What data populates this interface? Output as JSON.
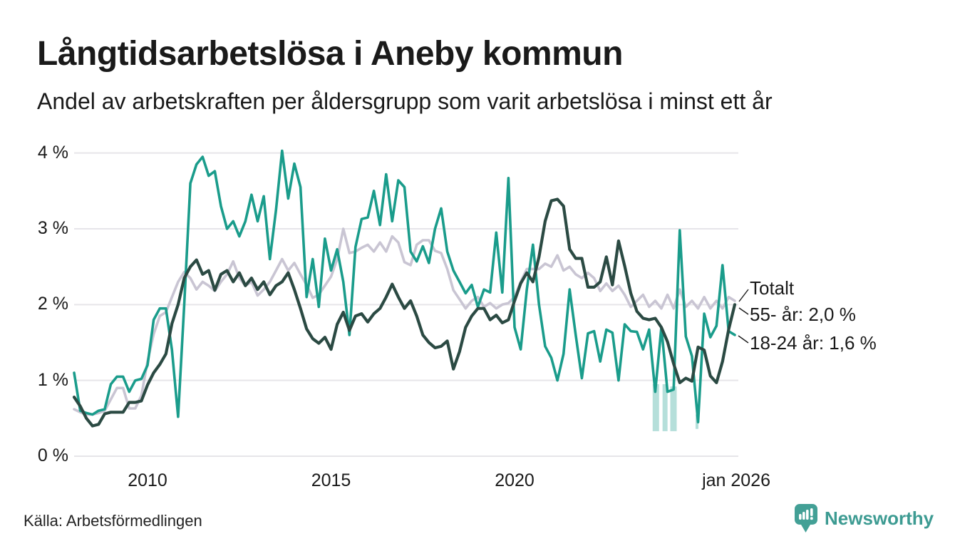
{
  "header": {
    "title": "Långtidsarbetslösa i Aneby kommun",
    "subtitle": "Andel av arbetskraften per åldersgrupp som varit arbetslösa i minst ett år"
  },
  "source_note": "Källa: Arbetsförmedlingen",
  "branding": {
    "name": "Newsworthy",
    "color": "#3d9b92"
  },
  "annotations": {
    "totalt": "Totalt",
    "age_55": "55- år: 2,0 %",
    "age_18_24": "18-24 år: 1,6 %"
  },
  "chart_data": {
    "type": "line",
    "title": "Långtidsarbetslösa i Aneby kommun",
    "subtitle": "Andel av arbetskraften per åldersgrupp som varit arbetslösa i minst ett år",
    "unit": "% av arbetskraften",
    "x_start": 2008.0,
    "x_step_years": 0.16667,
    "xlim": [
      2008.0,
      2026.05
    ],
    "ylim": [
      0,
      4.2
    ],
    "grid": "horizontal",
    "y_ticks": [
      {
        "label": "0 %",
        "v": 0
      },
      {
        "label": "1 %",
        "v": 1
      },
      {
        "label": "2 %",
        "v": 2
      },
      {
        "label": "3 %",
        "v": 3
      },
      {
        "label": "4 %",
        "v": 4
      }
    ],
    "x_ticks": [
      {
        "label": "2010",
        "t": 2010.0
      },
      {
        "label": "2015",
        "t": 2015.0
      },
      {
        "label": "2020",
        "t": 2020.0
      },
      {
        "label": "jan 2026",
        "t": 2026.04
      }
    ],
    "series": [
      {
        "name": "Totalt",
        "color": "#c9c5d3",
        "stroke_width": 3.6,
        "end_value_label": null,
        "values": [
          0.62,
          0.58,
          0.55,
          0.55,
          0.57,
          0.6,
          0.75,
          0.9,
          0.9,
          0.63,
          0.63,
          0.8,
          1.25,
          1.61,
          1.85,
          1.9,
          2.1,
          2.3,
          2.43,
          2.35,
          2.2,
          2.3,
          2.25,
          2.18,
          2.3,
          2.4,
          2.57,
          2.35,
          2.25,
          2.3,
          2.12,
          2.2,
          2.3,
          2.45,
          2.6,
          2.45,
          2.55,
          2.4,
          2.26,
          2.09,
          2.13,
          2.25,
          2.37,
          2.6,
          3.0,
          2.68,
          2.7,
          2.75,
          2.79,
          2.7,
          2.82,
          2.7,
          2.9,
          2.82,
          2.56,
          2.52,
          2.79,
          2.85,
          2.85,
          2.71,
          2.68,
          2.47,
          2.19,
          2.07,
          1.95,
          2.05,
          2.1,
          1.97,
          2.02,
          1.95,
          2.0,
          2.02,
          2.1,
          2.3,
          2.47,
          2.47,
          2.47,
          2.54,
          2.5,
          2.65,
          2.45,
          2.5,
          2.4,
          2.35,
          2.42,
          2.35,
          2.18,
          2.28,
          2.18,
          2.25,
          2.13,
          1.97,
          2.05,
          2.13,
          1.97,
          2.05,
          1.95,
          2.13,
          1.95,
          2.2,
          1.97,
          2.05,
          1.95,
          2.1,
          1.95,
          2.05,
          1.95,
          2.1,
          2.05
        ]
      },
      {
        "name": "18-24 år",
        "color": "#1a9c8b",
        "stroke_width": 3.6,
        "end_value_label": "18-24 år: 1,6 %",
        "values": [
          1.1,
          0.6,
          0.57,
          0.55,
          0.6,
          0.62,
          0.95,
          1.05,
          1.05,
          0.85,
          1.0,
          1.02,
          1.2,
          1.8,
          1.95,
          1.95,
          1.4,
          0.52,
          2.0,
          3.6,
          3.85,
          3.95,
          3.7,
          3.76,
          3.3,
          3.0,
          3.1,
          2.9,
          3.1,
          3.45,
          3.1,
          3.43,
          2.6,
          3.25,
          4.03,
          3.4,
          3.86,
          3.55,
          2.1,
          2.6,
          1.97,
          2.87,
          2.45,
          2.73,
          2.3,
          1.6,
          2.76,
          3.13,
          3.15,
          3.5,
          3.05,
          3.72,
          3.1,
          3.64,
          3.55,
          2.7,
          2.57,
          2.77,
          2.55,
          3.0,
          3.27,
          2.7,
          2.45,
          2.3,
          2.15,
          2.26,
          1.97,
          2.2,
          2.16,
          2.95,
          2.16,
          3.67,
          1.7,
          1.41,
          2.2,
          2.79,
          2.0,
          1.45,
          1.3,
          1.0,
          1.35,
          2.2,
          1.6,
          1.03,
          1.62,
          1.65,
          1.25,
          1.67,
          1.63,
          1.0,
          1.74,
          1.65,
          1.64,
          1.41,
          1.67,
          0.85,
          1.7,
          0.85,
          0.88,
          2.98,
          1.58,
          1.32,
          0.45,
          1.88,
          1.57,
          1.72,
          2.52,
          1.65,
          1.6
        ]
      },
      {
        "name": "55- år",
        "color": "#2b4a43",
        "stroke_width": 4.2,
        "end_value_label": "55- år: 2,0 %",
        "values": [
          0.78,
          0.66,
          0.5,
          0.4,
          0.42,
          0.56,
          0.58,
          0.58,
          0.58,
          0.71,
          0.71,
          0.73,
          0.94,
          1.1,
          1.21,
          1.35,
          1.75,
          2.0,
          2.35,
          2.5,
          2.59,
          2.4,
          2.45,
          2.19,
          2.4,
          2.45,
          2.3,
          2.42,
          2.25,
          2.35,
          2.2,
          2.3,
          2.13,
          2.25,
          2.3,
          2.42,
          2.2,
          1.95,
          1.68,
          1.55,
          1.49,
          1.57,
          1.41,
          1.74,
          1.9,
          1.66,
          1.85,
          1.88,
          1.77,
          1.88,
          1.95,
          2.1,
          2.27,
          2.1,
          1.95,
          2.05,
          1.85,
          1.6,
          1.5,
          1.43,
          1.45,
          1.52,
          1.15,
          1.38,
          1.7,
          1.85,
          1.95,
          1.95,
          1.8,
          1.86,
          1.76,
          1.8,
          2.05,
          2.28,
          2.42,
          2.3,
          2.63,
          3.1,
          3.37,
          3.39,
          3.3,
          2.73,
          2.61,
          2.61,
          2.23,
          2.23,
          2.3,
          2.63,
          2.26,
          2.84,
          2.51,
          2.15,
          1.91,
          1.82,
          1.8,
          1.82,
          1.7,
          1.51,
          1.22,
          0.97,
          1.03,
          0.99,
          1.44,
          1.4,
          1.06,
          0.97,
          1.25,
          1.67,
          2.0
        ]
      }
    ],
    "uncertain_bars": [
      {
        "t": 2023.85,
        "v_top": 0.95,
        "v_bottom": 0.33,
        "width": 9
      },
      {
        "t": 2024.1,
        "v_top": 0.95,
        "v_bottom": 0.33,
        "width": 7
      },
      {
        "t": 2024.33,
        "v_top": 0.92,
        "v_bottom": 0.33,
        "width": 9
      },
      {
        "t": 2024.97,
        "v_top": 0.55,
        "v_bottom": 0.36,
        "width": 4
      }
    ],
    "legend_position": "end-of-line-labels"
  }
}
